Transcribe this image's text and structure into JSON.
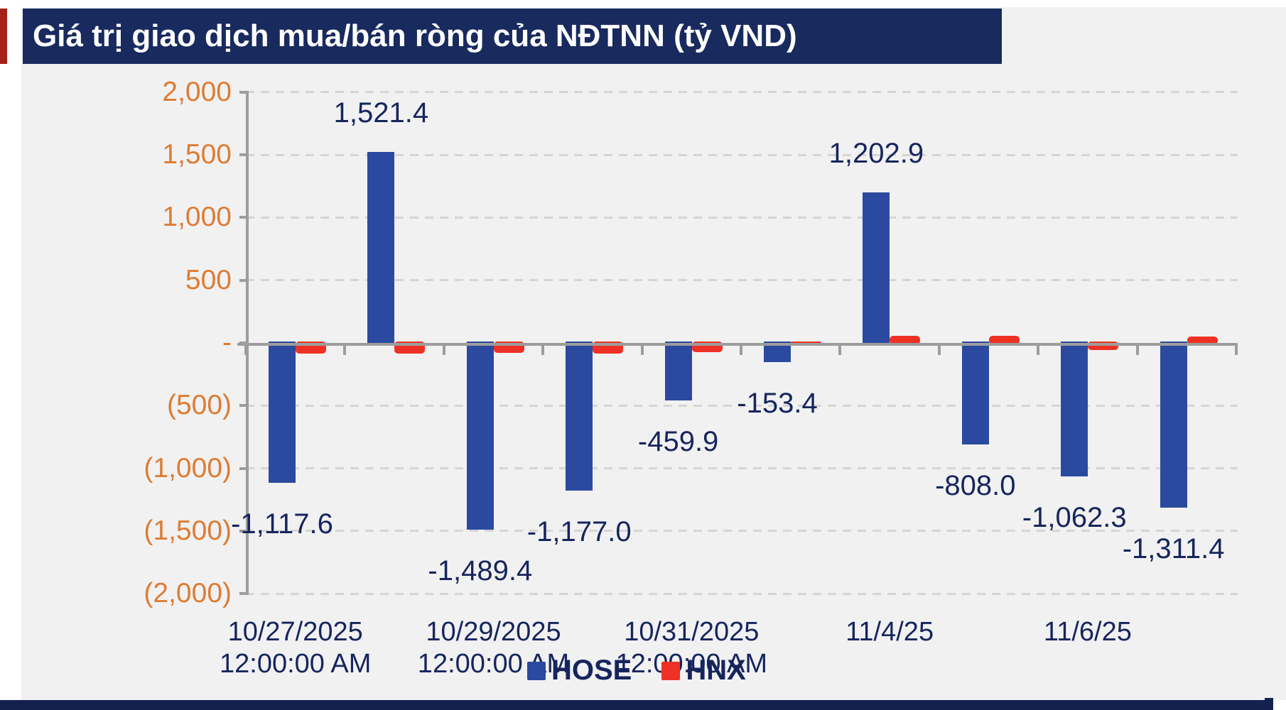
{
  "header": {
    "title": "Giá trị giao dịch mua/bán ròng của NĐTNN (tỷ VND)"
  },
  "colors": {
    "title_bar_bg": "#182A5E",
    "title_text": "#FFFFFF",
    "accent_strip": "#A6211A",
    "hose_bar": "#2B4A9F",
    "hnx_bar": "#EE3124",
    "axis_label_orange": "#DD7C33",
    "data_label_navy": "#16255C",
    "axis_line_gray": "#9D9D9D",
    "gridline_gray": "#D5D5D5",
    "panel_bg": "#F1F1F2",
    "footer_bar": "#14214E"
  },
  "legend": {
    "items": [
      {
        "label": "HOSE",
        "color": "#2B4A9F"
      },
      {
        "label": "HNX",
        "color": "#EE3124"
      }
    ],
    "position": "bottom-center"
  },
  "chart_data": {
    "type": "bar",
    "title": "Giá trị giao dịch mua/bán ròng của NĐTNN (tỷ VND)",
    "ylabel": "",
    "xlabel": "",
    "ylim": [
      -2000,
      2000
    ],
    "grid": "horizontal-dashed",
    "y_ticks": [
      {
        "value": 2000,
        "label": "2,000"
      },
      {
        "value": 1500,
        "label": "1,500"
      },
      {
        "value": 1000,
        "label": "1,000"
      },
      {
        "value": 500,
        "label": "500"
      },
      {
        "value": 0,
        "label": "-"
      },
      {
        "value": -500,
        "label": "(500)"
      },
      {
        "value": -1000,
        "label": "(1,000)"
      },
      {
        "value": -1500,
        "label": "(1,500)"
      },
      {
        "value": -2000,
        "label": "(2,000)"
      }
    ],
    "x_tick_labels": [
      {
        "index": 0,
        "lines": [
          "10/27/2025",
          "12:00:00 AM"
        ]
      },
      {
        "index": 2,
        "lines": [
          "10/29/2025",
          "12:00:00 AM"
        ]
      },
      {
        "index": 4,
        "lines": [
          "10/31/2025",
          "12:00:00 AM"
        ]
      },
      {
        "index": 6,
        "lines": [
          "11/4/25"
        ]
      },
      {
        "index": 8,
        "lines": [
          "11/6/25"
        ]
      }
    ],
    "num_categories": 10,
    "series": [
      {
        "name": "HOSE",
        "color": "#2B4A9F",
        "values": [
          -1117.6,
          1521.4,
          -1489.4,
          -1177.0,
          -459.9,
          -153.4,
          1202.9,
          -808.0,
          -1062.3,
          -1311.4
        ],
        "data_labels": [
          "-1,117.6",
          "1,521.4",
          "-1,489.4",
          "-1,177.0",
          "-459.9",
          "-153.4",
          "1,202.9",
          "-808.0",
          "-1,062.3",
          "-1,311.4"
        ]
      },
      {
        "name": "HNX",
        "color": "#EE3124",
        "values_estimated_from_pixels": true,
        "values": [
          -85,
          -85,
          -80,
          -85,
          -75,
          10,
          57,
          55,
          -55,
          50
        ],
        "data_labels": []
      }
    ],
    "legend_entries": [
      "HOSE",
      "HNX"
    ]
  }
}
